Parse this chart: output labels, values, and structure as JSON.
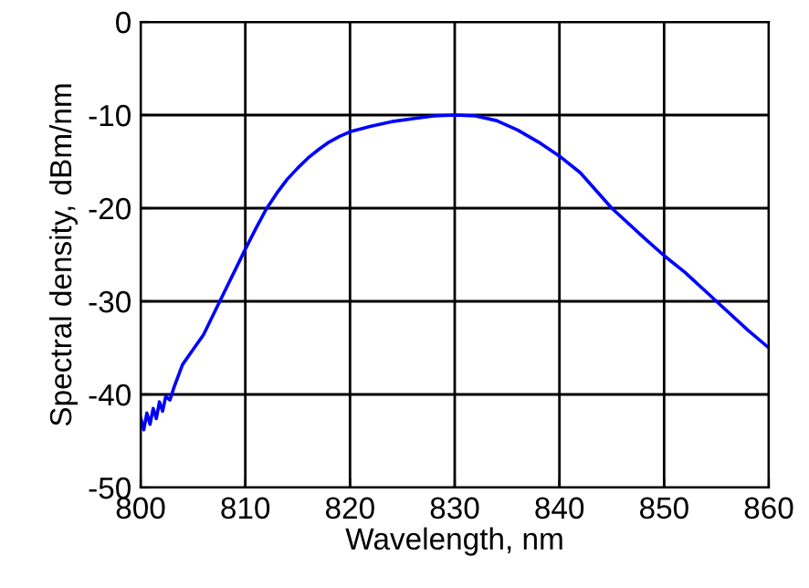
{
  "chart_data": {
    "type": "line",
    "xlabel": "Wavelength, nm",
    "ylabel": "Spectral density, dBm/nm",
    "xlim": [
      800,
      860
    ],
    "ylim": [
      -50,
      0
    ],
    "xticks": [
      800,
      810,
      820,
      830,
      840,
      850,
      860
    ],
    "yticks": [
      -50,
      -40,
      -30,
      -20,
      -10,
      0
    ],
    "grid": true,
    "series": [
      {
        "color": "#0000ff",
        "x": [
          800,
          800.3,
          800.6,
          800.9,
          801.2,
          801.5,
          801.8,
          802.1,
          802.4,
          802.8,
          803.2,
          804,
          805,
          806,
          807,
          808,
          809,
          810,
          811,
          812,
          813,
          814,
          815,
          816,
          817,
          818,
          819,
          820,
          822,
          824,
          826,
          828,
          830,
          832,
          834,
          836,
          838,
          840,
          842,
          845,
          848,
          850,
          852,
          855,
          858,
          860
        ],
        "values": [
          -42.5,
          -43.8,
          -42.0,
          -43.2,
          -41.5,
          -42.6,
          -40.8,
          -41.8,
          -40.2,
          -40.6,
          -39.2,
          -36.8,
          -35.2,
          -33.6,
          -31.3,
          -29.0,
          -26.7,
          -24.4,
          -22.2,
          -20.1,
          -18.4,
          -16.9,
          -15.7,
          -14.6,
          -13.7,
          -12.9,
          -12.3,
          -11.8,
          -11.2,
          -10.7,
          -10.4,
          -10.1,
          -10.0,
          -10.1,
          -10.6,
          -11.6,
          -12.9,
          -14.4,
          -16.2,
          -20.0,
          -23.1,
          -25.1,
          -26.9,
          -30.0,
          -33.1,
          -35.0
        ]
      }
    ]
  }
}
